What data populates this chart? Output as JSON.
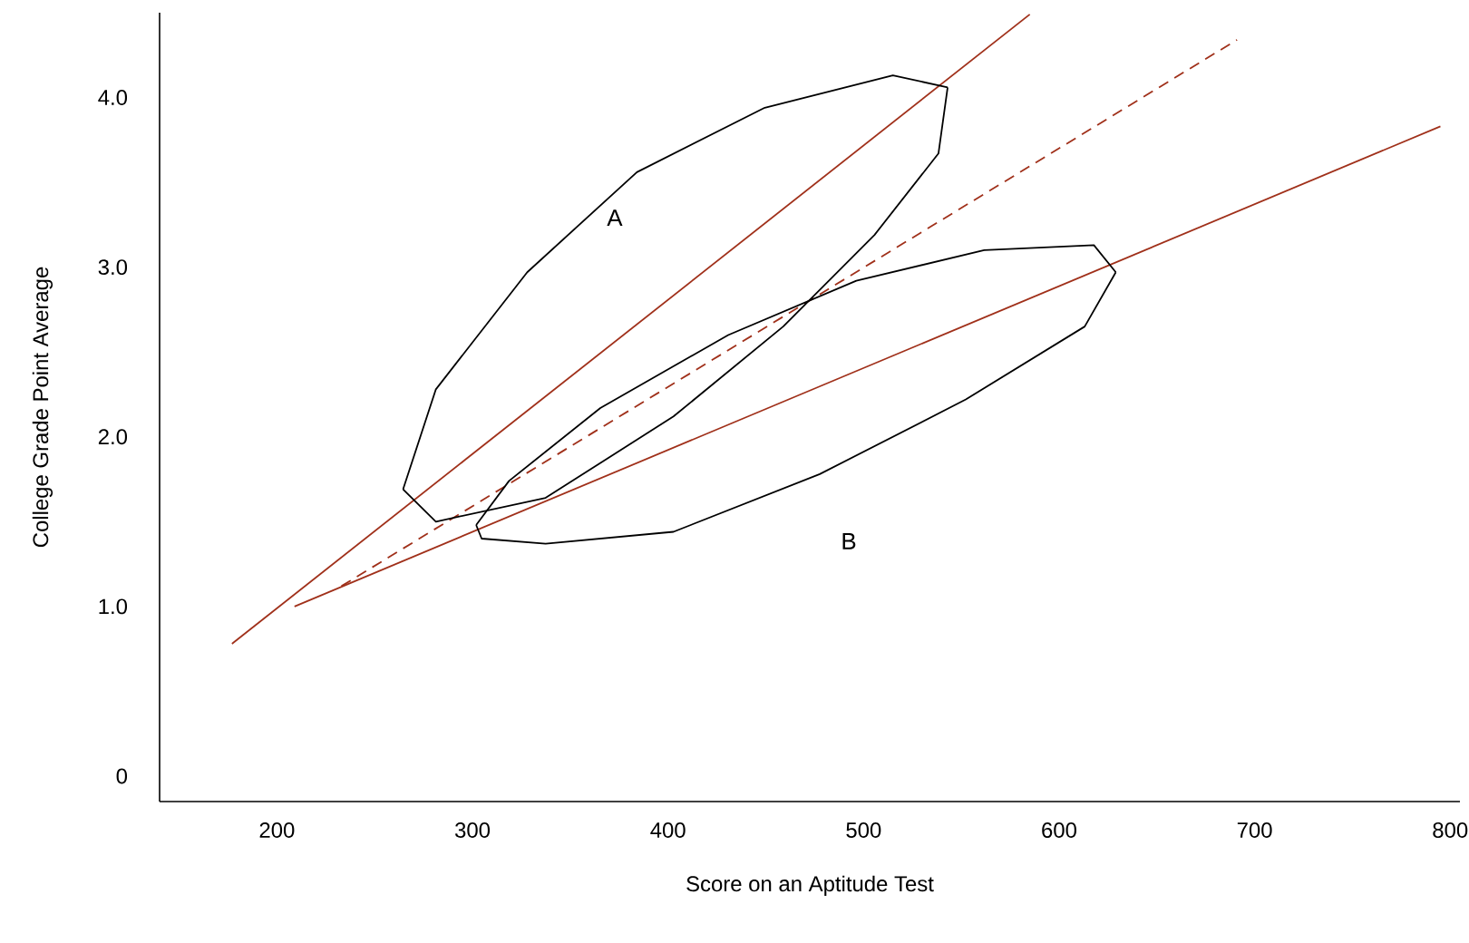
{
  "chart_data": {
    "type": "line",
    "xlabel": "Score on an Aptitude Test",
    "ylabel": "College Grade Point Average",
    "xlim": [
      140,
      805
    ],
    "ylim": [
      -0.15,
      4.5
    ],
    "xticks": [
      200,
      300,
      400,
      500,
      600,
      700,
      800
    ],
    "yticks": [
      0,
      {
        "value": 1,
        "label": "1.0"
      },
      {
        "value": 2,
        "label": "2.0"
      },
      {
        "value": 3,
        "label": "3.0"
      },
      {
        "value": 4,
        "label": "4.0"
      }
    ],
    "grid": false,
    "marker": "none",
    "series": [
      {
        "color": "#a0301a",
        "line_style": "solid",
        "x": [
          177,
          585
        ],
        "values": [
          0.78,
          4.49
        ]
      },
      {
        "color": "#a0301a",
        "line_style": "dashed",
        "x": [
          233,
          691
        ],
        "values": [
          1.12,
          4.34
        ]
      },
      {
        "color": "#a0301a",
        "line_style": "solid",
        "x": [
          209,
          795
        ],
        "values": [
          1.0,
          3.83
        ]
      },
      {
        "color": "#000000",
        "line_style": "solid",
        "x": [
          264.5,
          281.3,
          328.0,
          384.1,
          449.5,
          515.0,
          543.0
        ],
        "values": [
          1.69,
          2.28,
          2.97,
          3.56,
          3.94,
          4.13,
          4.06
        ]
      },
      {
        "color": "#000000",
        "line_style": "solid",
        "x": [
          264.5,
          281.3,
          337.4,
          402.8,
          458.9,
          505.6,
          538.3,
          543.0
        ],
        "values": [
          1.69,
          1.5,
          1.64,
          2.12,
          2.65,
          3.19,
          3.67,
          4.06
        ]
      },
      {
        "color": "#000000",
        "line_style": "solid",
        "x": [
          301.9,
          318.7,
          365.4,
          430.8,
          496.3,
          561.7,
          617.8,
          629.0
        ],
        "values": [
          1.48,
          1.74,
          2.17,
          2.6,
          2.92,
          3.1,
          3.13,
          2.97
        ]
      },
      {
        "color": "#000000",
        "line_style": "solid",
        "x": [
          301.9,
          304.7,
          337.4,
          402.8,
          477.6,
          552.3,
          613.1,
          629.0
        ],
        "values": [
          1.48,
          1.4,
          1.37,
          1.44,
          1.78,
          2.22,
          2.65,
          2.97
        ]
      }
    ],
    "annotations": [
      "A",
      "B"
    ]
  }
}
